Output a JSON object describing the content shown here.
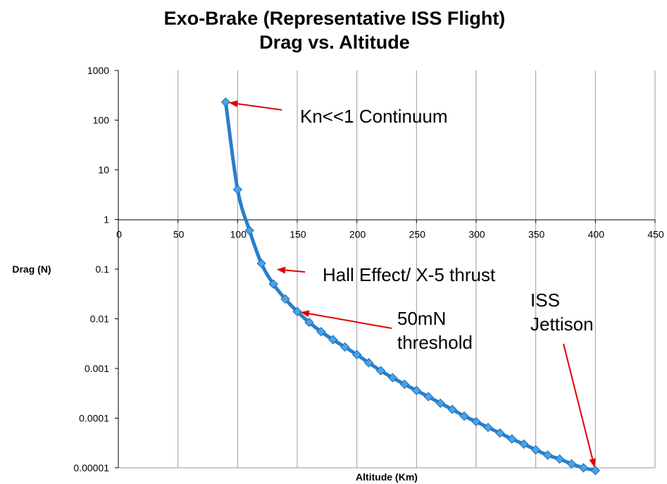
{
  "chart_data": {
    "type": "scatter",
    "title": "Exo-Brake (Representative ISS Flight)",
    "subtitle": "Drag vs. Altitude",
    "xlabel": "Altitude (Km)",
    "ylabel": "Drag (N)",
    "xlim": [
      0,
      450
    ],
    "ylim": [
      1e-05,
      1000
    ],
    "yscale": "log",
    "x_ticks": [
      "0",
      "50",
      "100",
      "150",
      "200",
      "250",
      "300",
      "350",
      "400",
      "450"
    ],
    "y_ticks": [
      "1000",
      "100",
      "10",
      "1",
      "0.1",
      "0.01",
      "0.001",
      "0.0001",
      "0.00001"
    ],
    "grid": "vertical",
    "line_color": "#2a7fc8",
    "marker_color": "#4aa3e8",
    "arrow_color": "#e00000",
    "series": [
      {
        "x": [
          90,
          100,
          110,
          120,
          130,
          140,
          150,
          160,
          170,
          180,
          190,
          200,
          210,
          220,
          230,
          240,
          250,
          260,
          270,
          280,
          290,
          300,
          310,
          320,
          330,
          340,
          350,
          360,
          370,
          380,
          390,
          400
        ],
        "y": [
          230,
          4,
          0.6,
          0.13,
          0.05,
          0.025,
          0.014,
          0.0085,
          0.0055,
          0.0038,
          0.0027,
          0.0019,
          0.0013,
          0.0009,
          0.00065,
          0.00048,
          0.00036,
          0.00027,
          0.0002,
          0.00015,
          0.00011,
          8.5e-05,
          6.5e-05,
          5e-05,
          3.8e-05,
          3e-05,
          2.3e-05,
          1.8e-05,
          1.5e-05,
          1.2e-05,
          1e-05,
          8.8e-06
        ]
      }
    ],
    "annotations": [
      {
        "text": [
          "Kn<<1 Continuum"
        ],
        "target": [
          90,
          230
        ]
      },
      {
        "text": [
          "Hall Effect/ X-5 thrust"
        ],
        "target": [
          130,
          0.1
        ]
      },
      {
        "text": [
          "50mN",
          "threshold"
        ],
        "target": [
          150,
          0.014
        ]
      },
      {
        "text": [
          "ISS",
          "Jettison"
        ],
        "target": [
          400,
          8.8e-06
        ]
      }
    ]
  }
}
